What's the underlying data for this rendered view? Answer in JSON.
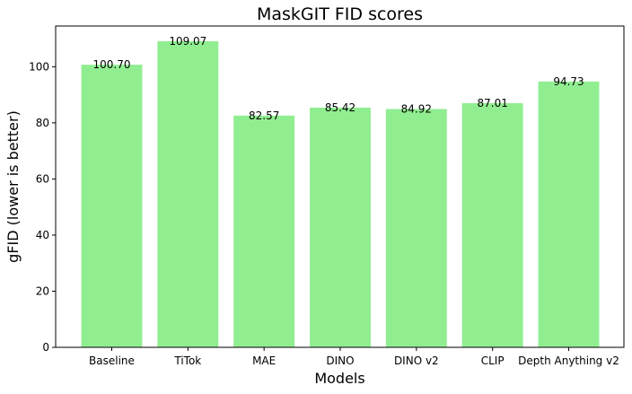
{
  "chart_data": {
    "type": "bar",
    "title": "MaskGIT FID scores",
    "xlabel": "Models",
    "ylabel": "gFID (lower is better)",
    "categories": [
      "Baseline",
      "TiTok",
      "MAE",
      "DINO",
      "DINO v2",
      "CLIP",
      "Depth Anything v2"
    ],
    "values": [
      100.7,
      109.07,
      82.57,
      85.42,
      84.92,
      87.01,
      94.73
    ],
    "value_labels": [
      "100.70",
      "109.07",
      "82.57",
      "85.42",
      "84.92",
      "87.01",
      "94.73"
    ],
    "ylim": [
      0,
      114.5
    ],
    "yticks": [
      0,
      20,
      40,
      60,
      80,
      100
    ],
    "bar_color": "#90ee90",
    "grid": false,
    "legend": "none"
  }
}
